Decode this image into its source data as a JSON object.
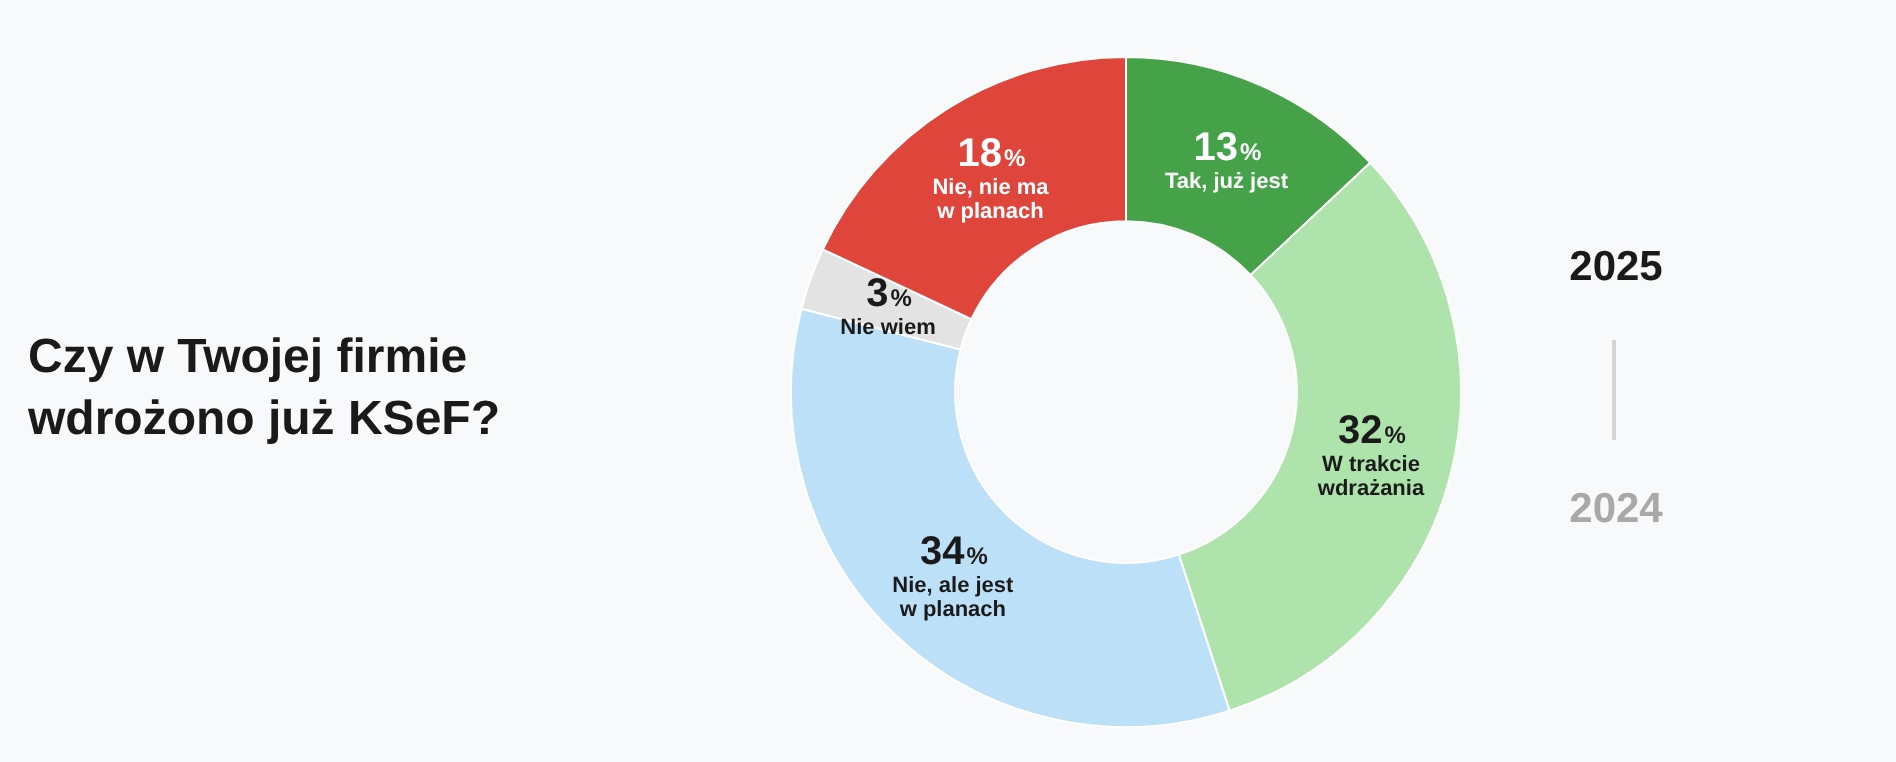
{
  "chart_data": {
    "type": "donut",
    "title": "Czy w Twojej firmie wdrożono już KSeF?",
    "categories": [
      "Tak, już jest",
      "W trakcie wdrażania",
      "Nie, ale jest w planach",
      "Nie wiem",
      "Nie, nie ma w planach"
    ],
    "values": [
      13,
      32,
      34,
      3,
      18
    ],
    "colors": [
      "#45a249",
      "#aee3ab",
      "#bde0f9",
      "#e3e3e3",
      "#e0453c"
    ],
    "value_labels": [
      "13%",
      "32%",
      "34%",
      "3%",
      "18%"
    ],
    "legend": false,
    "annotations": [
      "2025",
      "2024"
    ]
  }
}
